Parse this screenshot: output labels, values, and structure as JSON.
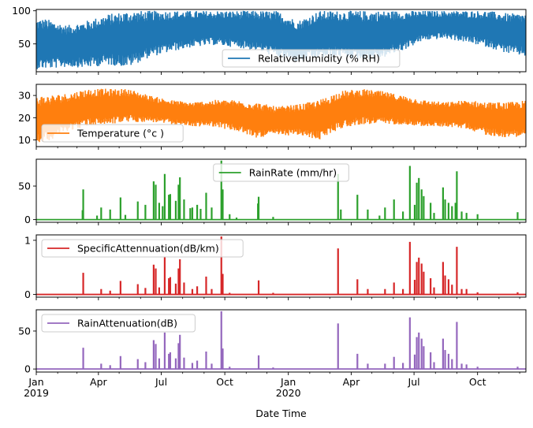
{
  "chart_data": {
    "type": "line",
    "layout": "5 vertically stacked subplots sharing x axis",
    "xlabel": "Date Time",
    "x_range": [
      "2019-01-01",
      "2020-12-10"
    ],
    "x_major_ticks": [
      {
        "date": "2019-01-01",
        "label": "Jan",
        "sublabel": "2019"
      },
      {
        "date": "2019-04-01",
        "label": "Apr",
        "sublabel": ""
      },
      {
        "date": "2019-07-01",
        "label": "Jul",
        "sublabel": ""
      },
      {
        "date": "2019-10-01",
        "label": "Oct",
        "sublabel": ""
      },
      {
        "date": "2020-01-01",
        "label": "Jan",
        "sublabel": "2020"
      },
      {
        "date": "2020-04-01",
        "label": "Apr",
        "sublabel": ""
      },
      {
        "date": "2020-07-01",
        "label": "Jul",
        "sublabel": ""
      },
      {
        "date": "2020-10-01",
        "label": "Oct",
        "sublabel": ""
      }
    ],
    "x_minor_ticks": [
      "2019-02-01",
      "2019-03-01",
      "2019-05-01",
      "2019-06-01",
      "2019-08-01",
      "2019-09-01",
      "2019-11-01",
      "2019-12-01",
      "2020-02-01",
      "2020-03-01",
      "2020-05-01",
      "2020-06-01",
      "2020-08-01",
      "2020-09-01",
      "2020-11-01",
      "2020-12-01"
    ],
    "series": [
      {
        "name": "RelativeHumidity (% RH)",
        "color": "#1f77b4",
        "kind": "band",
        "ylim": [
          8,
          102
        ],
        "yticks": [
          50,
          100
        ],
        "legend": "lower-center",
        "months": [
          "2019-01",
          "2019-02",
          "2019-03",
          "2019-04",
          "2019-05",
          "2019-06",
          "2019-07",
          "2019-08",
          "2019-09",
          "2019-10",
          "2019-11",
          "2019-12",
          "2020-01",
          "2020-02",
          "2020-03",
          "2020-04",
          "2020-05",
          "2020-06",
          "2020-07",
          "2020-08",
          "2020-09",
          "2020-10",
          "2020-11",
          "2020-12"
        ],
        "monthly_min": [
          12,
          15,
          14,
          18,
          15,
          30,
          38,
          45,
          48,
          45,
          40,
          30,
          22,
          28,
          30,
          25,
          28,
          40,
          55,
          58,
          52,
          45,
          35,
          30
        ],
        "monthly_max": [
          88,
          78,
          85,
          95,
          100,
          100,
          100,
          100,
          100,
          100,
          100,
          100,
          85,
          100,
          100,
          100,
          100,
          100,
          100,
          100,
          100,
          100,
          96,
          96
        ]
      },
      {
        "name": "Temperature (°c )",
        "color": "#ff7f0e",
        "kind": "band",
        "ylim": [
          7,
          35
        ],
        "yticks": [
          10,
          20,
          30
        ],
        "legend": "lower-left",
        "months": [
          "2019-01",
          "2019-02",
          "2019-03",
          "2019-04",
          "2019-05",
          "2019-06",
          "2019-07",
          "2019-08",
          "2019-09",
          "2019-10",
          "2019-11",
          "2019-12",
          "2020-01",
          "2020-02",
          "2020-03",
          "2020-04",
          "2020-05",
          "2020-06",
          "2020-07",
          "2020-08",
          "2020-09",
          "2020-10",
          "2020-11",
          "2020-12"
        ],
        "monthly_min": [
          9,
          14,
          16,
          17,
          18,
          18,
          17,
          16,
          16,
          14,
          11,
          12,
          12,
          10,
          15,
          17,
          17,
          17,
          16,
          16,
          15,
          12,
          11,
          12
        ],
        "monthly_max": [
          30,
          31,
          33,
          33,
          33,
          30,
          28,
          27,
          28,
          28,
          27,
          25,
          26,
          28,
          32,
          33,
          32,
          30,
          28,
          27,
          28,
          27,
          27,
          28
        ]
      },
      {
        "name": "RainRate (mm/hr)",
        "color": "#2ca02c",
        "kind": "spikes",
        "ylim": [
          -4,
          90
        ],
        "yticks": [
          0,
          50
        ],
        "legend": "upper-center",
        "baseline": 0,
        "peaks": [
          {
            "date": "2019-03-10",
            "value": 45
          },
          {
            "date": "2019-03-09",
            "value": 14
          },
          {
            "date": "2019-03-30",
            "value": 6
          },
          {
            "date": "2019-04-05",
            "value": 18
          },
          {
            "date": "2019-04-18",
            "value": 15
          },
          {
            "date": "2019-05-03",
            "value": 33
          },
          {
            "date": "2019-05-10",
            "value": 7
          },
          {
            "date": "2019-05-28",
            "value": 27
          },
          {
            "date": "2019-06-08",
            "value": 22
          },
          {
            "date": "2019-06-20",
            "value": 57
          },
          {
            "date": "2019-06-23",
            "value": 52
          },
          {
            "date": "2019-06-28",
            "value": 25
          },
          {
            "date": "2019-07-03",
            "value": 20
          },
          {
            "date": "2019-07-06",
            "value": 68
          },
          {
            "date": "2019-07-12",
            "value": 37
          },
          {
            "date": "2019-07-14",
            "value": 38
          },
          {
            "date": "2019-07-22",
            "value": 28
          },
          {
            "date": "2019-07-26",
            "value": 52
          },
          {
            "date": "2019-07-28",
            "value": 63
          },
          {
            "date": "2019-08-03",
            "value": 30
          },
          {
            "date": "2019-08-12",
            "value": 17
          },
          {
            "date": "2019-08-15",
            "value": 18
          },
          {
            "date": "2019-08-22",
            "value": 22
          },
          {
            "date": "2019-08-27",
            "value": 16
          },
          {
            "date": "2019-09-04",
            "value": 40
          },
          {
            "date": "2019-09-12",
            "value": 18
          },
          {
            "date": "2019-09-26",
            "value": 88
          },
          {
            "date": "2019-09-28",
            "value": 45
          },
          {
            "date": "2019-10-08",
            "value": 8
          },
          {
            "date": "2019-10-18",
            "value": 3
          },
          {
            "date": "2019-11-19",
            "value": 34
          },
          {
            "date": "2019-11-18",
            "value": 24
          },
          {
            "date": "2019-12-10",
            "value": 4
          },
          {
            "date": "2020-03-13",
            "value": 68
          },
          {
            "date": "2020-03-17",
            "value": 15
          },
          {
            "date": "2020-04-10",
            "value": 37
          },
          {
            "date": "2020-04-25",
            "value": 15
          },
          {
            "date": "2020-05-12",
            "value": 6
          },
          {
            "date": "2020-05-20",
            "value": 18
          },
          {
            "date": "2020-06-02",
            "value": 30
          },
          {
            "date": "2020-06-15",
            "value": 12
          },
          {
            "date": "2020-06-25",
            "value": 80
          },
          {
            "date": "2020-07-02",
            "value": 22
          },
          {
            "date": "2020-07-05",
            "value": 55
          },
          {
            "date": "2020-07-08",
            "value": 62
          },
          {
            "date": "2020-07-12",
            "value": 45
          },
          {
            "date": "2020-07-15",
            "value": 35
          },
          {
            "date": "2020-07-25",
            "value": 25
          },
          {
            "date": "2020-07-30",
            "value": 10
          },
          {
            "date": "2020-08-12",
            "value": 48
          },
          {
            "date": "2020-08-15",
            "value": 30
          },
          {
            "date": "2020-08-20",
            "value": 25
          },
          {
            "date": "2020-08-25",
            "value": 20
          },
          {
            "date": "2020-09-01",
            "value": 72
          },
          {
            "date": "2020-08-30",
            "value": 25
          },
          {
            "date": "2020-09-08",
            "value": 12
          },
          {
            "date": "2020-09-15",
            "value": 10
          },
          {
            "date": "2020-10-01",
            "value": 8
          },
          {
            "date": "2020-11-28",
            "value": 11
          }
        ]
      },
      {
        "name": "SpecificAttennuation(dB/km)",
        "color": "#d62728",
        "kind": "spikes",
        "ylim": [
          -0.05,
          1.1
        ],
        "yticks": [
          0,
          1
        ],
        "legend": "upper-left",
        "baseline": 0,
        "peaks": [
          {
            "date": "2019-03-10",
            "value": 0.4
          },
          {
            "date": "2019-04-05",
            "value": 0.1
          },
          {
            "date": "2019-04-18",
            "value": 0.07
          },
          {
            "date": "2019-05-03",
            "value": 0.25
          },
          {
            "date": "2019-05-28",
            "value": 0.19
          },
          {
            "date": "2019-06-08",
            "value": 0.12
          },
          {
            "date": "2019-06-20",
            "value": 0.55
          },
          {
            "date": "2019-06-23",
            "value": 0.48
          },
          {
            "date": "2019-06-28",
            "value": 0.13
          },
          {
            "date": "2019-07-06",
            "value": 0.7
          },
          {
            "date": "2019-07-12",
            "value": 0.3
          },
          {
            "date": "2019-07-14",
            "value": 0.32
          },
          {
            "date": "2019-07-22",
            "value": 0.2
          },
          {
            "date": "2019-07-26",
            "value": 0.48
          },
          {
            "date": "2019-07-28",
            "value": 0.65
          },
          {
            "date": "2019-08-03",
            "value": 0.22
          },
          {
            "date": "2019-08-15",
            "value": 0.1
          },
          {
            "date": "2019-08-22",
            "value": 0.15
          },
          {
            "date": "2019-09-04",
            "value": 0.33
          },
          {
            "date": "2019-09-12",
            "value": 0.1
          },
          {
            "date": "2019-09-26",
            "value": 1.07
          },
          {
            "date": "2019-09-28",
            "value": 0.38
          },
          {
            "date": "2019-10-08",
            "value": 0.03
          },
          {
            "date": "2019-11-19",
            "value": 0.26
          },
          {
            "date": "2019-12-10",
            "value": 0.03
          },
          {
            "date": "2020-03-13",
            "value": 0.85
          },
          {
            "date": "2020-04-10",
            "value": 0.28
          },
          {
            "date": "2020-04-25",
            "value": 0.1
          },
          {
            "date": "2020-05-20",
            "value": 0.1
          },
          {
            "date": "2020-06-02",
            "value": 0.22
          },
          {
            "date": "2020-06-15",
            "value": 0.1
          },
          {
            "date": "2020-06-25",
            "value": 0.97
          },
          {
            "date": "2020-07-02",
            "value": 0.27
          },
          {
            "date": "2020-07-05",
            "value": 0.6
          },
          {
            "date": "2020-07-08",
            "value": 0.68
          },
          {
            "date": "2020-07-12",
            "value": 0.57
          },
          {
            "date": "2020-07-15",
            "value": 0.42
          },
          {
            "date": "2020-07-25",
            "value": 0.3
          },
          {
            "date": "2020-07-30",
            "value": 0.13
          },
          {
            "date": "2020-08-12",
            "value": 0.6
          },
          {
            "date": "2020-08-15",
            "value": 0.35
          },
          {
            "date": "2020-08-20",
            "value": 0.28
          },
          {
            "date": "2020-08-25",
            "value": 0.18
          },
          {
            "date": "2020-09-01",
            "value": 0.88
          },
          {
            "date": "2020-09-08",
            "value": 0.1
          },
          {
            "date": "2020-09-15",
            "value": 0.1
          },
          {
            "date": "2020-10-01",
            "value": 0.04
          },
          {
            "date": "2020-11-28",
            "value": 0.04
          }
        ]
      },
      {
        "name": "RainAttenuation(dB)",
        "color": "#9467bd",
        "kind": "spikes",
        "ylim": [
          -4,
          78
        ],
        "yticks": [
          0,
          50
        ],
        "legend": "upper-left",
        "baseline": 0,
        "peaks": [
          {
            "date": "2019-03-10",
            "value": 28
          },
          {
            "date": "2019-04-05",
            "value": 7
          },
          {
            "date": "2019-04-18",
            "value": 5
          },
          {
            "date": "2019-05-03",
            "value": 17
          },
          {
            "date": "2019-05-28",
            "value": 13
          },
          {
            "date": "2019-06-08",
            "value": 9
          },
          {
            "date": "2019-06-20",
            "value": 38
          },
          {
            "date": "2019-06-23",
            "value": 33
          },
          {
            "date": "2019-06-28",
            "value": 14
          },
          {
            "date": "2019-07-06",
            "value": 48
          },
          {
            "date": "2019-07-12",
            "value": 20
          },
          {
            "date": "2019-07-14",
            "value": 22
          },
          {
            "date": "2019-07-22",
            "value": 14
          },
          {
            "date": "2019-07-26",
            "value": 34
          },
          {
            "date": "2019-07-28",
            "value": 45
          },
          {
            "date": "2019-08-03",
            "value": 15
          },
          {
            "date": "2019-08-15",
            "value": 8
          },
          {
            "date": "2019-08-22",
            "value": 11
          },
          {
            "date": "2019-09-04",
            "value": 23
          },
          {
            "date": "2019-09-12",
            "value": 7
          },
          {
            "date": "2019-09-26",
            "value": 76
          },
          {
            "date": "2019-09-28",
            "value": 27
          },
          {
            "date": "2019-10-08",
            "value": 3
          },
          {
            "date": "2019-11-19",
            "value": 18
          },
          {
            "date": "2019-12-10",
            "value": 2
          },
          {
            "date": "2020-03-13",
            "value": 60
          },
          {
            "date": "2020-04-10",
            "value": 20
          },
          {
            "date": "2020-04-25",
            "value": 7
          },
          {
            "date": "2020-05-20",
            "value": 7
          },
          {
            "date": "2020-06-02",
            "value": 16
          },
          {
            "date": "2020-06-15",
            "value": 8
          },
          {
            "date": "2020-06-25",
            "value": 68
          },
          {
            "date": "2020-07-02",
            "value": 19
          },
          {
            "date": "2020-07-05",
            "value": 42
          },
          {
            "date": "2020-07-08",
            "value": 48
          },
          {
            "date": "2020-07-12",
            "value": 40
          },
          {
            "date": "2020-07-15",
            "value": 30
          },
          {
            "date": "2020-07-25",
            "value": 22
          },
          {
            "date": "2020-07-30",
            "value": 9
          },
          {
            "date": "2020-08-12",
            "value": 40
          },
          {
            "date": "2020-08-15",
            "value": 25
          },
          {
            "date": "2020-08-20",
            "value": 20
          },
          {
            "date": "2020-08-25",
            "value": 13
          },
          {
            "date": "2020-09-01",
            "value": 62
          },
          {
            "date": "2020-09-08",
            "value": 7
          },
          {
            "date": "2020-09-15",
            "value": 6
          },
          {
            "date": "2020-10-01",
            "value": 3
          },
          {
            "date": "2020-11-28",
            "value": 3
          }
        ]
      }
    ]
  },
  "labels": {
    "xlabel": "Date Time"
  }
}
